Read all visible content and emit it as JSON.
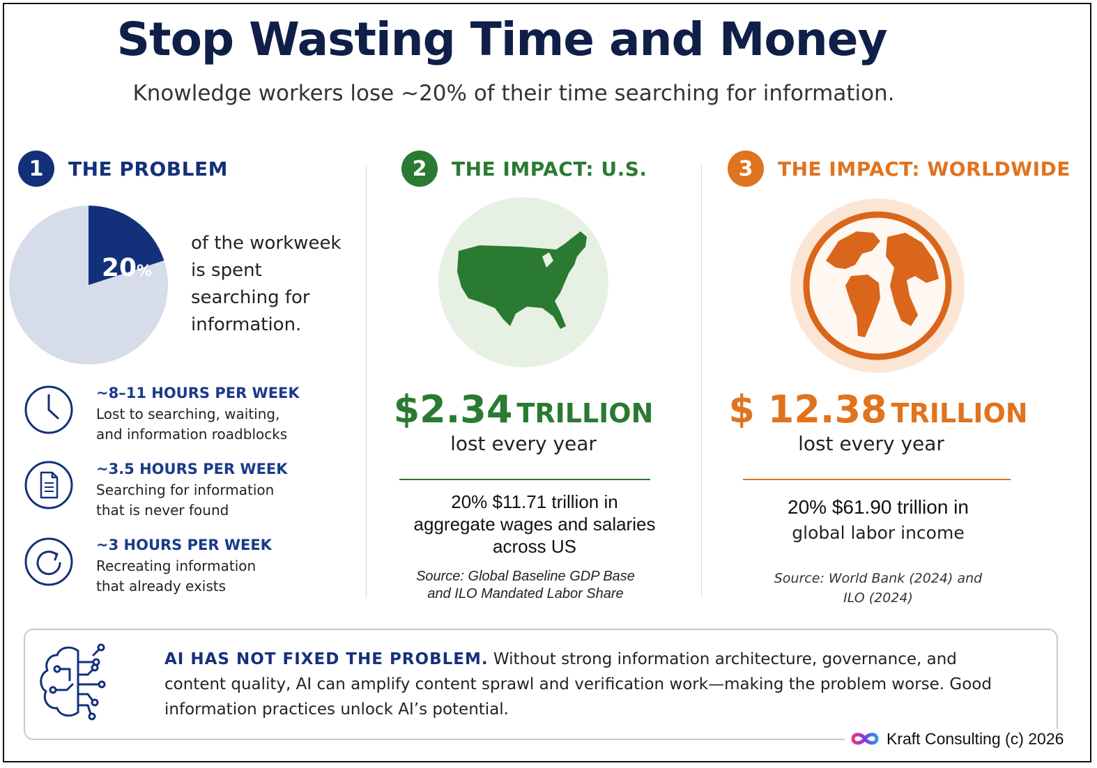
{
  "header": {
    "title": "Stop Wasting Time and Money",
    "subtitle": "Knowledge workers lose ~20% of their time searching for information."
  },
  "sections": {
    "problem": {
      "number": "1",
      "title": "THE PROBLEM",
      "color": "#13307a",
      "pie_percent_label": "20",
      "pie_percent_sign": "%",
      "pie_share": 0.2,
      "pie_colors": {
        "slice": "#13307a",
        "rest": "#d7dcea"
      },
      "caption_lines": [
        "of the workweek",
        "is spent",
        "searching for",
        "information."
      ],
      "stats": [
        {
          "icon": "clock-icon",
          "headline": "~8–11 HOURS PER WEEK",
          "lines": [
            "Lost to searching, waiting,",
            "and information roadblocks"
          ]
        },
        {
          "icon": "document-icon",
          "headline": "~3.5 HOURS PER WEEK",
          "lines": [
            "Searching for information",
            "that is never found"
          ]
        },
        {
          "icon": "refresh-icon",
          "headline": "~3 HOURS PER WEEK",
          "lines": [
            "Recreating information",
            "that already exists"
          ]
        }
      ]
    },
    "us": {
      "number": "2",
      "title": "THE IMPACT: U.S.",
      "color": "#2a7a32",
      "amount": "$2.34",
      "unit": "TRILLION",
      "lost": "lost every year",
      "detail_lines": [
        "20% $11.71 trillion in",
        "aggregate wages and salaries",
        "across US"
      ],
      "source_lines": [
        "Source: Global Baseline GDP Base",
        "and ILO Mandated Labor Share"
      ]
    },
    "world": {
      "number": "3",
      "title": "THE IMPACT: WORLDWIDE",
      "color": "#e0731e",
      "amount": "$ 12.38",
      "unit": "TRILLION",
      "lost": "lost every year",
      "detail_line1": "20% $61.90 trillion in",
      "detail_line2": "global labor income",
      "source_lines": [
        "Source: World Bank (2024) and",
        "ILO (2024)"
      ]
    }
  },
  "ai_callout": {
    "icon": "brain-circuit-icon",
    "headline": "AI HAS NOT FIXED THE PROBLEM.",
    "body": "Without strong information architecture, governance, and content quality, AI can amplify content sprawl and verification work—making the problem worse. Good information practices unlock AI’s potential."
  },
  "footer": {
    "logo_icon": "infinity-logo-icon",
    "text": "Kraft Consulting (c) 2026"
  }
}
